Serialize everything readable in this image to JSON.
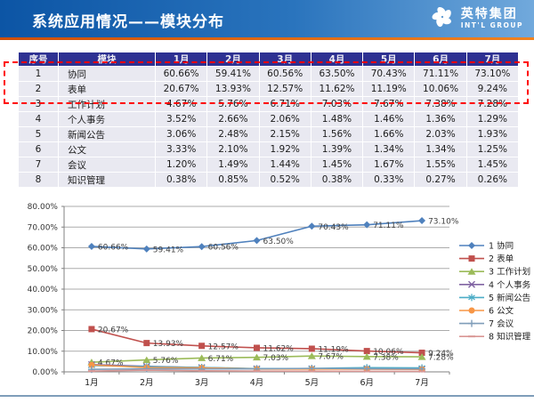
{
  "header": {
    "title": "系统应用情况——模块分布",
    "logo_cn": "英特集团",
    "logo_en": "INT'L GROUP"
  },
  "theme": {
    "header_gradient_left": "#0c55a5",
    "header_gradient_right": "#71a9dc",
    "accent_orange": "#E8640A",
    "table_header_bg": "#2E3192",
    "table_cell_bg": "#E9E9F1",
    "highlight_box_red": "#FF0000",
    "footer_line": "#7F9DB9"
  },
  "table": {
    "headers": [
      "序号",
      "模块",
      "1月",
      "2月",
      "3月",
      "4月",
      "5月",
      "6月",
      "7月"
    ],
    "rows": [
      {
        "no": "1",
        "module": "协同",
        "values": [
          "60.66%",
          "59.41%",
          "60.56%",
          "63.50%",
          "70.43%",
          "71.11%",
          "73.10%"
        ]
      },
      {
        "no": "2",
        "module": "表单",
        "values": [
          "20.67%",
          "13.93%",
          "12.57%",
          "11.62%",
          "11.19%",
          "10.06%",
          "9.24%"
        ]
      },
      {
        "no": "3",
        "module": "工作计划",
        "values": [
          "4.67%",
          "5.76%",
          "6.71%",
          "7.03%",
          "7.67%",
          "7.38%",
          "7.28%"
        ]
      },
      {
        "no": "4",
        "module": "个人事务",
        "values": [
          "3.52%",
          "2.66%",
          "2.06%",
          "1.48%",
          "1.46%",
          "1.36%",
          "1.29%"
        ]
      },
      {
        "no": "5",
        "module": "新闻公告",
        "values": [
          "3.06%",
          "2.48%",
          "2.15%",
          "1.56%",
          "1.66%",
          "2.03%",
          "1.93%"
        ]
      },
      {
        "no": "6",
        "module": "公文",
        "values": [
          "3.33%",
          "2.10%",
          "1.92%",
          "1.39%",
          "1.34%",
          "1.34%",
          "1.25%"
        ]
      },
      {
        "no": "7",
        "module": "会议",
        "values": [
          "1.20%",
          "1.49%",
          "1.44%",
          "1.45%",
          "1.67%",
          "1.55%",
          "1.45%"
        ]
      },
      {
        "no": "8",
        "module": "知识管理",
        "values": [
          "0.38%",
          "0.85%",
          "0.52%",
          "0.38%",
          "0.33%",
          "0.27%",
          "0.26%"
        ]
      }
    ]
  },
  "chart_data": {
    "type": "line",
    "x": [
      "1月",
      "2月",
      "3月",
      "4月",
      "5月",
      "6月",
      "7月"
    ],
    "series": [
      {
        "name": "1 协同",
        "values": [
          60.66,
          59.41,
          60.56,
          63.5,
          70.43,
          71.11,
          73.1
        ],
        "color": "#4F81BD",
        "marker": "diamond",
        "show_labels": true
      },
      {
        "name": "2 表单",
        "values": [
          20.67,
          13.93,
          12.57,
          11.62,
          11.19,
          10.06,
          9.24
        ],
        "color": "#C0504D",
        "marker": "square",
        "show_labels": true
      },
      {
        "name": "3 工作计划",
        "values": [
          4.67,
          5.76,
          6.71,
          7.03,
          7.67,
          7.38,
          7.28
        ],
        "color": "#9BBB59",
        "marker": "triangle",
        "show_labels": true
      },
      {
        "name": "4 个人事务",
        "values": [
          3.52,
          2.66,
          2.06,
          1.48,
          1.46,
          1.36,
          1.29
        ],
        "color": "#8064A2",
        "marker": "x",
        "show_labels": false
      },
      {
        "name": "5 新闻公告",
        "values": [
          3.06,
          2.48,
          2.15,
          1.56,
          1.66,
          2.03,
          1.93
        ],
        "color": "#4BACC6",
        "marker": "asterisk",
        "show_labels": false
      },
      {
        "name": "6 公文",
        "values": [
          3.33,
          2.1,
          1.92,
          1.39,
          1.34,
          1.34,
          1.25
        ],
        "color": "#F79646",
        "marker": "circle",
        "show_labels": false
      },
      {
        "name": "7 会议",
        "values": [
          1.2,
          1.49,
          1.44,
          1.45,
          1.67,
          1.55,
          1.45
        ],
        "color": "#7F9DB9",
        "marker": "plus",
        "show_labels": false
      },
      {
        "name": "8 知识管理",
        "values": [
          0.38,
          0.85,
          0.52,
          0.38,
          0.33,
          0.27,
          0.26
        ],
        "color": "#D99694",
        "marker": "dash",
        "show_labels": false
      }
    ],
    "ylim": [
      0,
      80
    ],
    "ytick_step": 10,
    "ytick_labels": [
      "0.00%",
      "10.00%",
      "20.00%",
      "30.00%",
      "40.00%",
      "50.00%",
      "60.00%",
      "70.00%",
      "80.00%"
    ],
    "grid": true,
    "legend_position": "right",
    "label_format": "percent2"
  }
}
